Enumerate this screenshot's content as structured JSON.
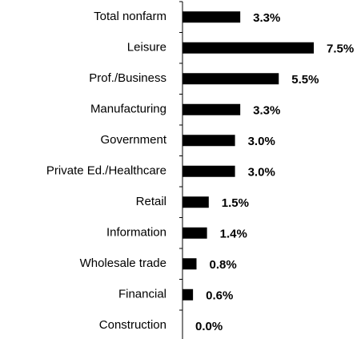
{
  "chart_data": {
    "type": "bar",
    "orientation": "horizontal",
    "categories": [
      "Total nonfarm",
      "Leisure",
      "Prof./Business",
      "Manufacturing",
      "Government",
      "Private Ed./Healthcare",
      "Retail",
      "Information",
      "Wholesale trade",
      "Financial",
      "Construction"
    ],
    "values": [
      3.3,
      7.5,
      5.5,
      3.3,
      3.0,
      3.0,
      1.5,
      1.4,
      0.8,
      0.6,
      0.0
    ],
    "value_labels": [
      "3.3%",
      "7.5%",
      "5.5%",
      "3.3%",
      "3.0%",
      "3.0%",
      "1.5%",
      "1.4%",
      "0.8%",
      "0.6%",
      "0.0%"
    ],
    "color": "#000000"
  }
}
